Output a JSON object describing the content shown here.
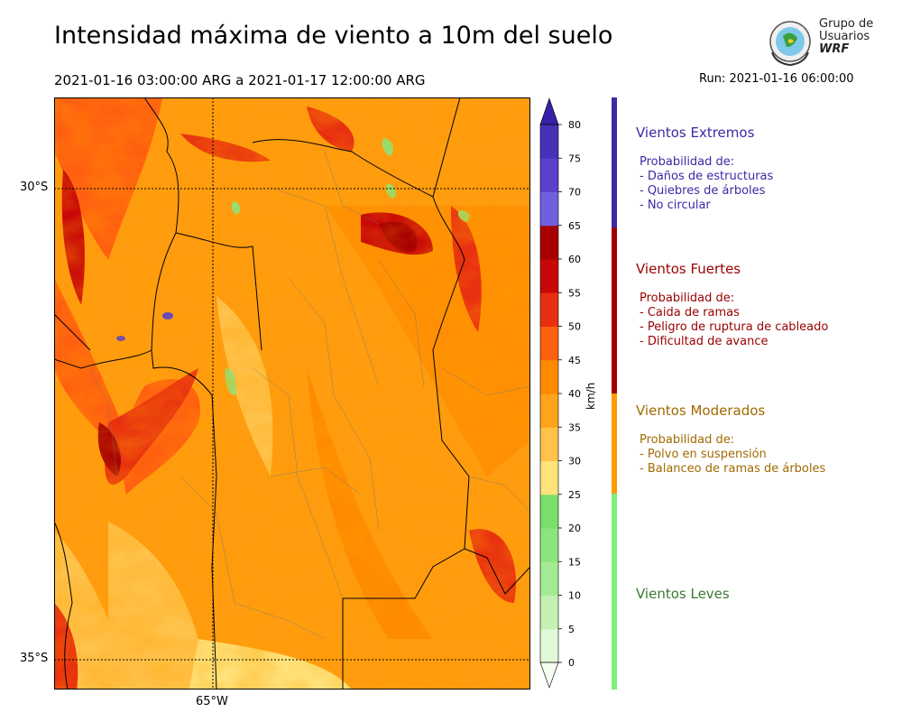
{
  "title": "Intensidad máxima de viento a 10m del suelo",
  "period": "2021-01-16 03:00:00 ARG  a  2021-01-17 12:00:00 ARG",
  "run": "Run: 2021-01-16 06:00:00",
  "logo": {
    "line1": "Grupo de",
    "line2": "Usuarios",
    "line3": "WRF"
  },
  "map": {
    "lat_labels": [
      "30°S",
      "35°S"
    ],
    "lon_labels": [
      "65°W"
    ]
  },
  "colorbar": {
    "unit": "km/h",
    "ticks": [
      "0",
      "5",
      "10",
      "15",
      "20",
      "25",
      "30",
      "35",
      "40",
      "45",
      "50",
      "55",
      "60",
      "65",
      "70",
      "75",
      "80"
    ],
    "colors": [
      "#f4fff0",
      "#e0f8d6",
      "#c4f0b4",
      "#a4ea92",
      "#8ce47c",
      "#78e06a",
      "#ffe27a",
      "#ffc24a",
      "#ffa41a",
      "#ff8a00",
      "#ff6010",
      "#e83010",
      "#c80808",
      "#a80000",
      "#7060e0",
      "#5a40cc",
      "#4830b8",
      "#3820a8"
    ]
  },
  "categories": [
    {
      "title": "Vientos Extremos",
      "color": "#3b2aa5",
      "bar_color": "#3b2aa5",
      "lines": [
        "Probabilidad de:",
        "- Daños de estructuras",
        "- Quiebres de árboles",
        "- No circular"
      ]
    },
    {
      "title": "Vientos Fuertes",
      "color": "#9a0000",
      "bar_color": "#a00000",
      "lines": [
        "Probabilidad de:",
        "- Caida de ramas",
        "- Peligro de ruptura de cableado",
        "- Dificultad de avance"
      ]
    },
    {
      "title": "Vientos Moderados",
      "color": "#a06a00",
      "bar_color": "#ff9a00",
      "lines": [
        "Probabilidad de:",
        "- Polvo en suspensión",
        "- Balanceo de ramas de árboles"
      ]
    },
    {
      "title": "Vientos Leves",
      "color": "#3a7a30",
      "bar_color": "#7af07a",
      "lines": []
    }
  ]
}
